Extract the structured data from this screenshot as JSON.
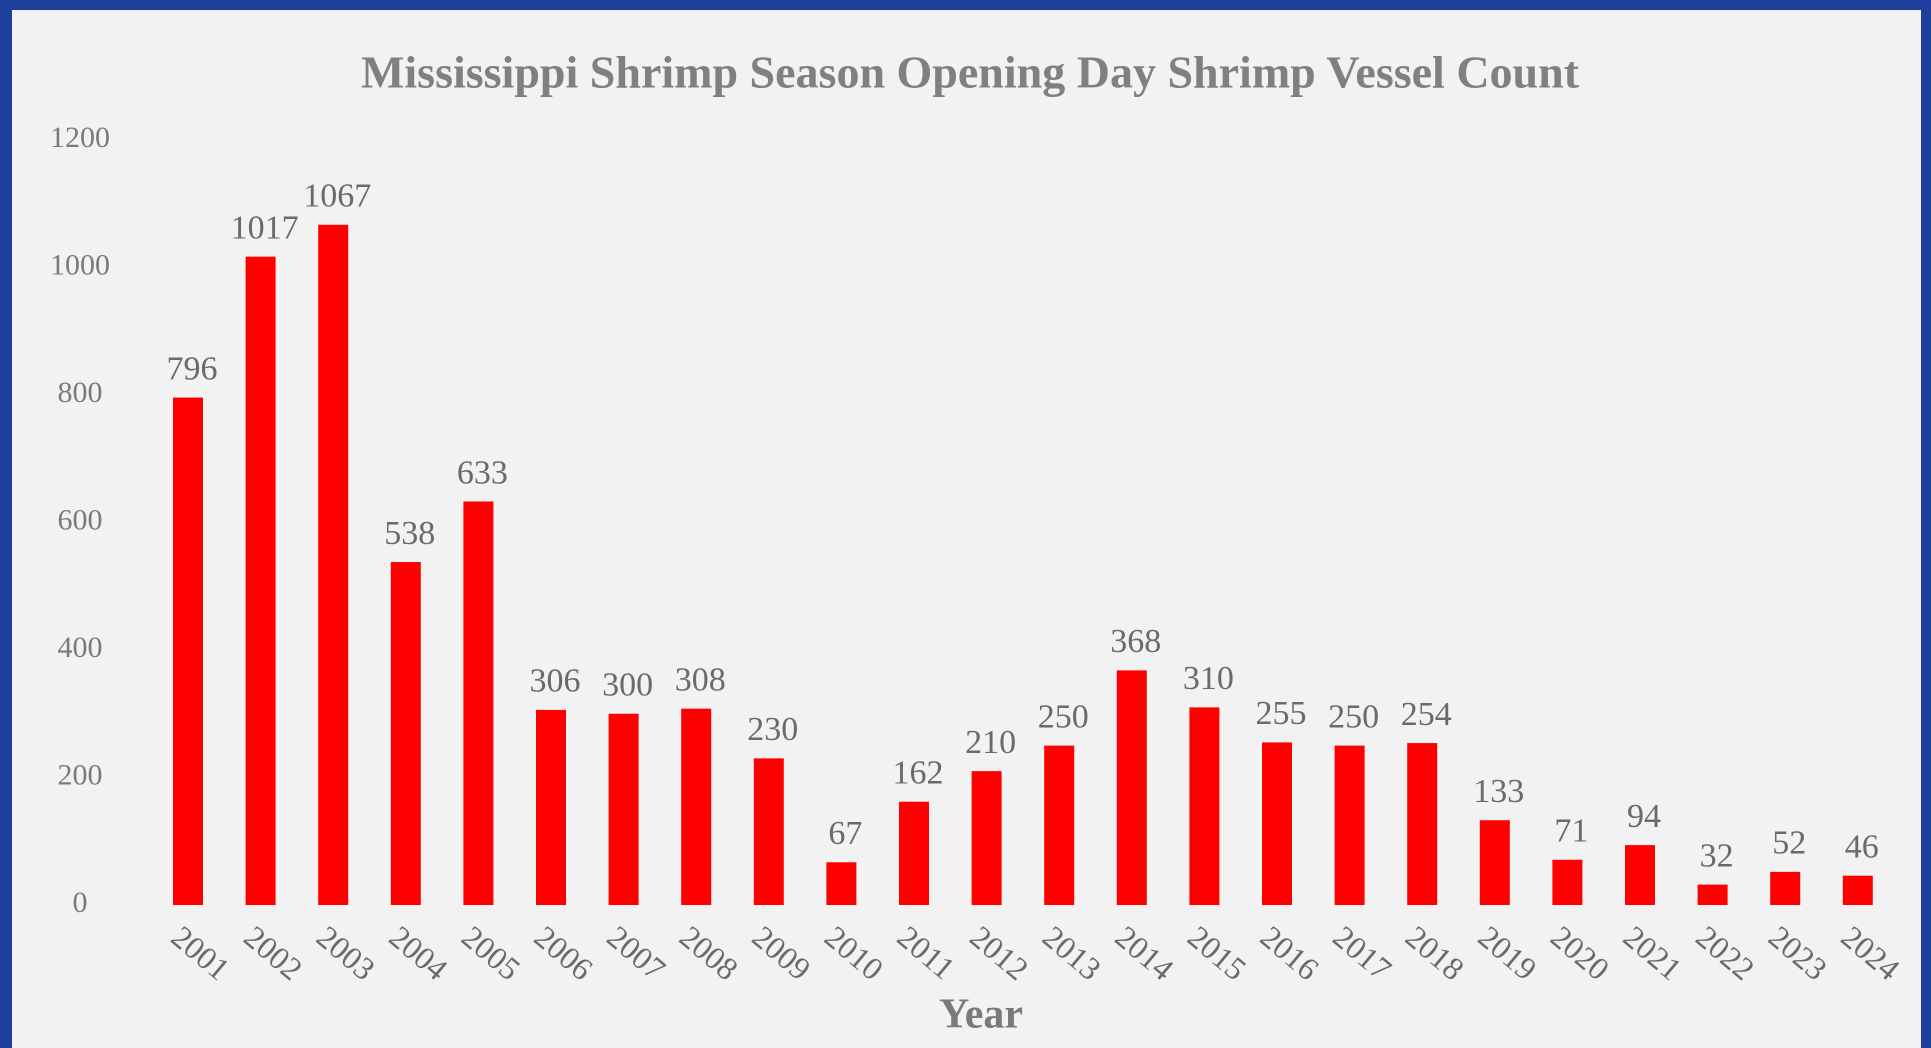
{
  "chart_data": {
    "type": "bar",
    "title": "Mississippi Shrimp Season Opening Day Shrimp Vessel Count",
    "x_label": "Year",
    "categories": [
      "2001",
      "2002",
      "2003",
      "2004",
      "2005",
      "2006",
      "2007",
      "2008",
      "2009",
      "2010",
      "2011",
      "2012",
      "2013",
      "2014",
      "2015",
      "2016",
      "2017",
      "2018",
      "2019",
      "2020",
      "2021",
      "2022",
      "2023",
      "2024"
    ],
    "values": [
      796,
      1017,
      1067,
      538,
      633,
      306,
      300,
      308,
      230,
      67,
      162,
      210,
      250,
      368,
      310,
      255,
      250,
      254,
      133,
      71,
      94,
      32,
      52,
      46
    ],
    "color": "#ff0000",
    "ylim": [
      0,
      1200
    ],
    "yticks": [
      0,
      200,
      400,
      600,
      800,
      1000,
      1200
    ],
    "grid": false
  }
}
